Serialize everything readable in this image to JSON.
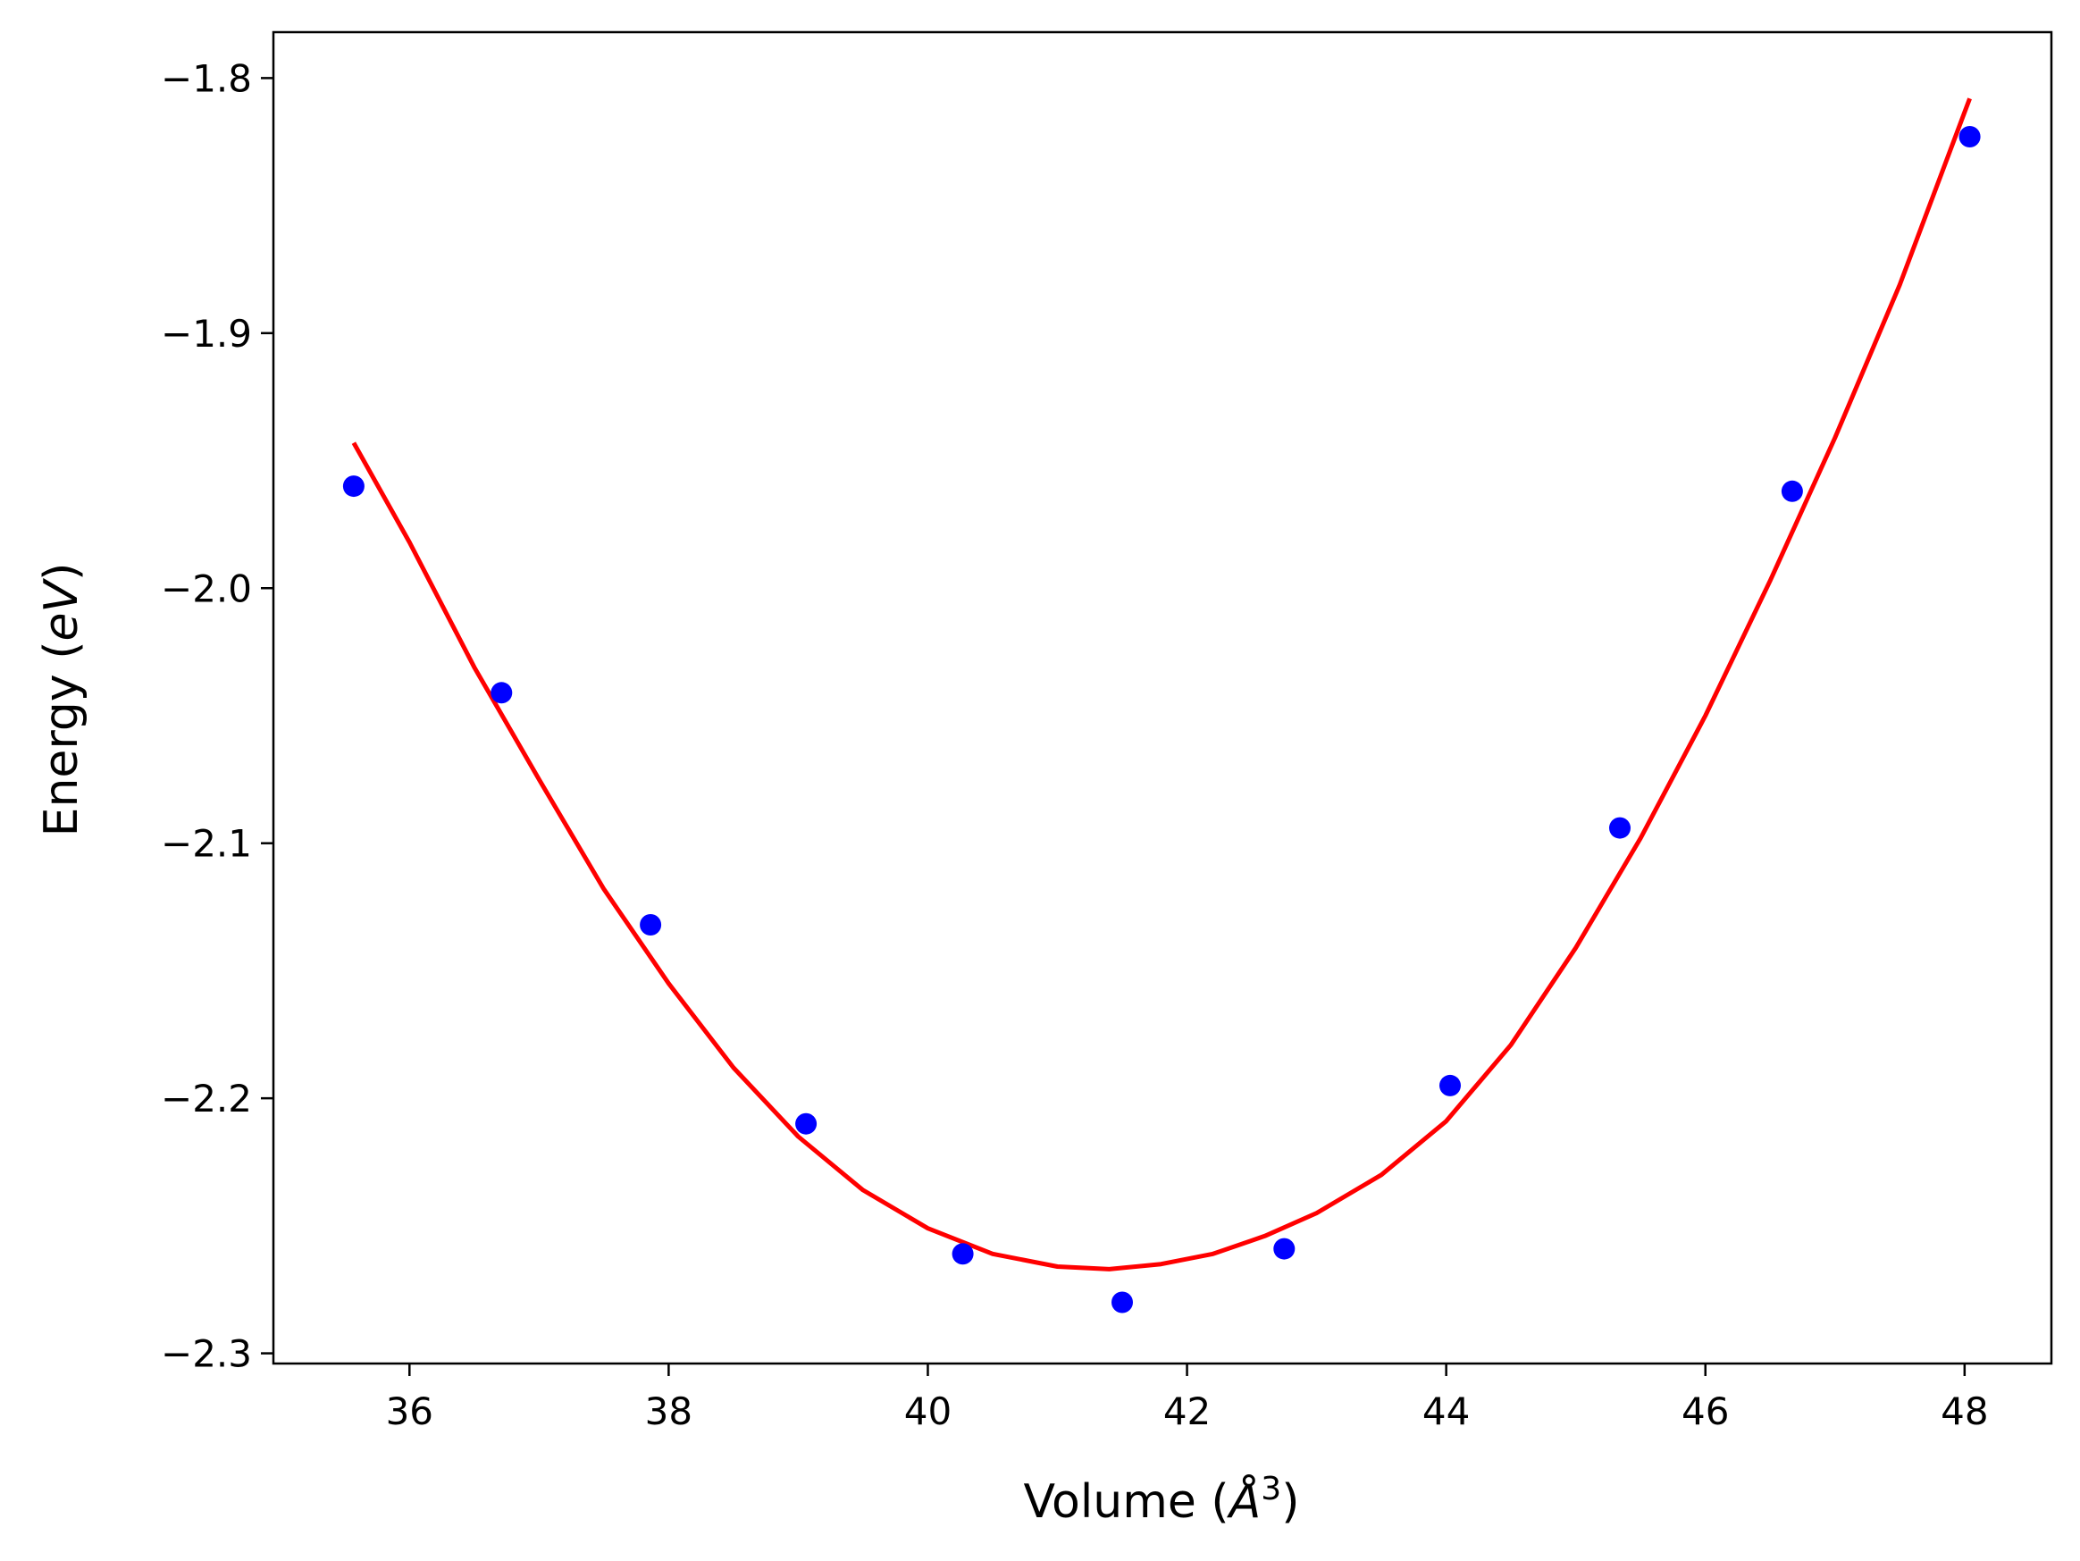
{
  "chart_data": {
    "type": "scatter",
    "title": "",
    "xlabel": "Volume (Å³)",
    "xlabel_parts": {
      "prefix": "Volume (",
      "symbol": "Å",
      "exponent": "3",
      "suffix": ")"
    },
    "ylabel": "Energy (eV)",
    "ylabel_parts": {
      "prefix": "Energy (",
      "symbol": "eV",
      "suffix": ")"
    },
    "xlim": [
      34.95,
      48.67
    ],
    "ylim": [
      -2.304,
      -1.782
    ],
    "xticks": [
      36,
      38,
      40,
      42,
      44,
      46,
      48
    ],
    "xtick_labels": [
      "36",
      "38",
      "40",
      "42",
      "44",
      "46",
      "48"
    ],
    "yticks": [
      -2.3,
      -2.2,
      -2.1,
      -2.0,
      -1.9,
      -1.8
    ],
    "ytick_labels": [
      "−2.3",
      "−2.2",
      "−2.1",
      "−2.0",
      "−1.9",
      "−1.8"
    ],
    "grid": false,
    "legend": "none",
    "series": [
      {
        "type": "scatter",
        "color": "#0000ff",
        "x": [
          35.57,
          36.71,
          37.86,
          39.06,
          40.27,
          41.5,
          42.75,
          44.03,
          45.34,
          46.67,
          48.04
        ],
        "y": [
          -1.96,
          -2.041,
          -2.132,
          -2.21,
          -2.261,
          -2.28,
          -2.259,
          -2.195,
          -2.094,
          -1.962,
          -1.823
        ]
      },
      {
        "type": "line",
        "color": "#ff0000",
        "x": [
          35.57,
          36.0,
          36.5,
          37.0,
          37.5,
          38.0,
          38.5,
          39.0,
          39.5,
          40.0,
          40.5,
          41.0,
          41.4,
          41.8,
          42.2,
          42.6,
          43.0,
          43.5,
          44.0,
          44.5,
          45.0,
          45.5,
          46.0,
          46.5,
          47.0,
          47.5,
          48.04
        ],
        "y": [
          -1.943,
          -1.982,
          -2.031,
          -2.075,
          -2.118,
          -2.155,
          -2.188,
          -2.215,
          -2.236,
          -2.251,
          -2.261,
          -2.266,
          -2.267,
          -2.265,
          -2.261,
          -2.254,
          -2.245,
          -2.23,
          -2.209,
          -2.179,
          -2.141,
          -2.098,
          -2.05,
          -1.997,
          -1.941,
          -1.881,
          -1.808
        ]
      }
    ]
  }
}
